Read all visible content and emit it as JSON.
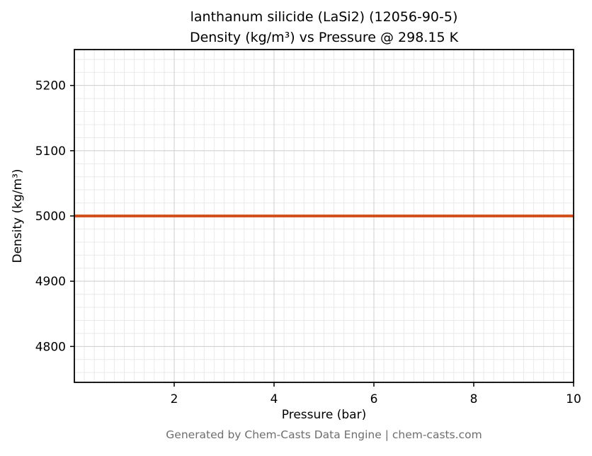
{
  "title": {
    "line1": "lanthanum silicide (LaSi2) (12056-90-5)",
    "line2": "Density (kg/m³) vs Pressure @ 298.15 K"
  },
  "footer": "Generated by Chem-Casts Data Engine | chem-casts.com",
  "colors": {
    "line": "#d2521e",
    "grid_major": "#cfcfcf",
    "grid_minor": "#e9e9e9",
    "spine": "#000000",
    "tick_label": "#000000",
    "footer_text": "#6e6e6e"
  },
  "chart_data": {
    "type": "line",
    "title": "lanthanum silicide (LaSi2) (12056-90-5) Density (kg/m³) vs Pressure @ 298.15 K",
    "xlabel": "Pressure (bar)",
    "ylabel": "Density (kg/m³)",
    "xlim": [
      0,
      10
    ],
    "ylim": [
      4745,
      5255
    ],
    "x_ticks": [
      2,
      4,
      6,
      8,
      10
    ],
    "y_ticks": [
      4800,
      4900,
      5000,
      5100,
      5200
    ],
    "x_minor_step": 0.2,
    "y_minor_step": 20,
    "grid": true,
    "legend_position": "none",
    "series": [
      {
        "name": "Density",
        "x": [
          0,
          10
        ],
        "y": [
          5000,
          5000
        ],
        "color": "#d2521e",
        "line_width": 4
      }
    ]
  }
}
